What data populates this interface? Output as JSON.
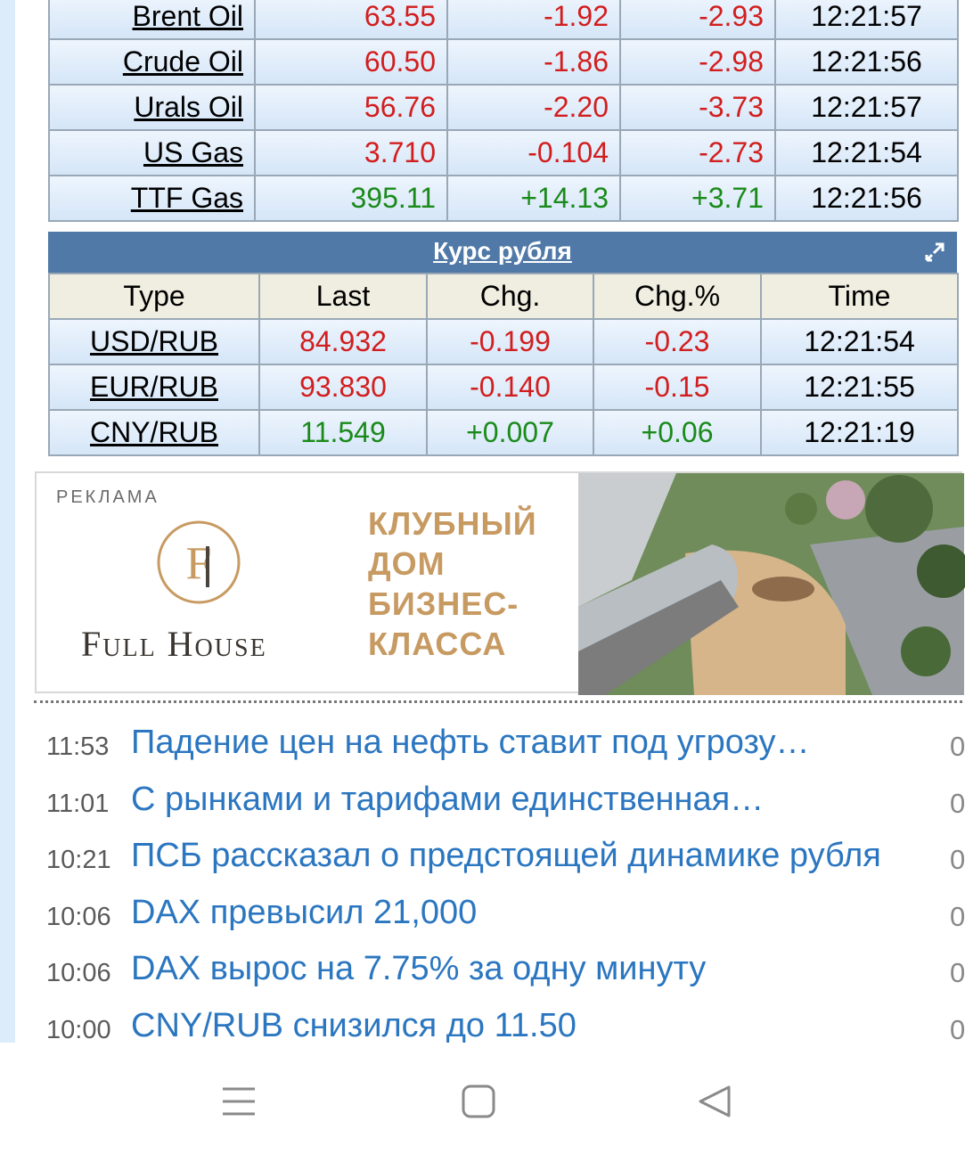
{
  "oil_table": {
    "rows": [
      {
        "name": "Brent Oil",
        "last": "63.55",
        "chg": "-1.92",
        "chgp": "-2.93",
        "time": "12:21:57"
      },
      {
        "name": "Crude Oil",
        "last": "60.50",
        "chg": "-1.86",
        "chgp": "-2.98",
        "time": "12:21:56"
      },
      {
        "name": "Urals Oil",
        "last": "56.76",
        "chg": "-2.20",
        "chgp": "-3.73",
        "time": "12:21:57"
      },
      {
        "name": "US Gas",
        "last": "3.710",
        "chg": "-0.104",
        "chgp": "-2.73",
        "time": "12:21:54"
      },
      {
        "name": "TTF Gas",
        "last": "395.11",
        "chg": "+14.13",
        "chgp": "+3.71",
        "time": "12:21:56"
      }
    ]
  },
  "rub_section": {
    "title": "Курс рубля",
    "headers": {
      "type": "Type",
      "last": "Last",
      "chg": "Chg.",
      "chgp": "Chg.%",
      "time": "Time"
    },
    "rows": [
      {
        "name": "USD/RUB",
        "last": "84.932",
        "chg": "-0.199",
        "chgp": "-0.23",
        "time": "12:21:54"
      },
      {
        "name": "EUR/RUB",
        "last": "93.830",
        "chg": "-0.140",
        "chgp": "-0.15",
        "time": "12:21:55"
      },
      {
        "name": "CNY/RUB",
        "last": "11.549",
        "chg": "+0.007",
        "chgp": "+0.06",
        "time": "12:21:19"
      }
    ]
  },
  "ad": {
    "label": "РЕКЛАМА",
    "brand": "Full House",
    "slogan": [
      "КЛУБНЫЙ",
      "ДОМ",
      "БИЗНЕС-",
      "КЛАССА"
    ]
  },
  "news": [
    {
      "time": "11:53",
      "headline": "Падение цен на нефть ставит под угрозу…",
      "count": "0"
    },
    {
      "time": "11:01",
      "headline": "С рынками и тарифами единственная…",
      "count": "0"
    },
    {
      "time": "10:21",
      "headline": "ПСБ рассказал о предстоящей динамике рубля",
      "count": "0"
    },
    {
      "time": "10:06",
      "headline": "DAX превысил 21,000",
      "count": "0"
    },
    {
      "time": "10:06",
      "headline": "DAX вырос на 7.75% за одну минуту",
      "count": "0"
    },
    {
      "time": "10:00",
      "headline": "CNY/RUB снизился до 11.50",
      "count": "0"
    }
  ],
  "colors": {
    "negative": "#d21e1e",
    "positive": "#1a8a1a",
    "header_blue": "#5079a8",
    "link": "#2b76c0",
    "ad_gold": "#c79a62"
  }
}
